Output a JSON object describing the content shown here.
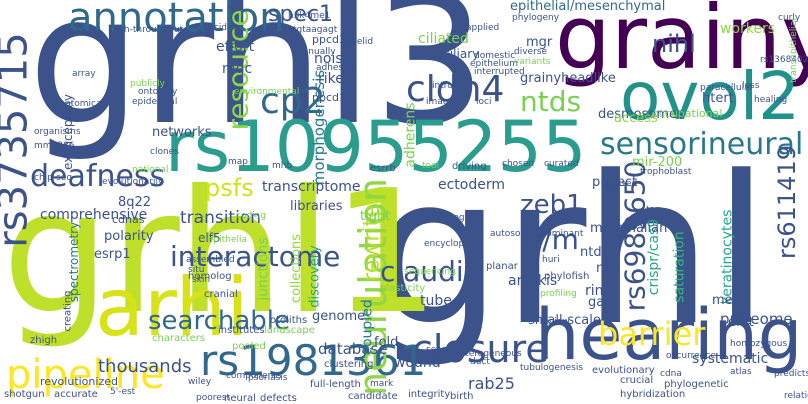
{
  "cloud": {
    "background": "#ffffff",
    "palette": [
      "#440154",
      "#3b528b",
      "#21918c",
      "#5ec962",
      "#fde725"
    ],
    "words": [
      {
        "text": "grhl",
        "color": "#3b528b"
      },
      {
        "text": "grhl3",
        "color": "#3b528b"
      },
      {
        "text": "grhl1",
        "color": "#bfe02a"
      },
      {
        "text": "grainy",
        "color": "#440154"
      },
      {
        "text": "hearing",
        "color": "#3b528b"
      },
      {
        "text": "rs10955255",
        "color": "#2a9d8f"
      },
      {
        "text": "ovol2",
        "color": "#21918c"
      },
      {
        "text": "arhi",
        "color": "#d8e219"
      },
      {
        "text": "annotation",
        "color": "#31688e"
      },
      {
        "text": "rs3735715",
        "color": "#3b528b"
      },
      {
        "text": "pipeline",
        "color": "#fde725"
      },
      {
        "text": "closure",
        "color": "#3b528b"
      },
      {
        "text": "rs1981361",
        "color": "#31688e"
      },
      {
        "text": "neurulation",
        "color": "#8fd744"
      },
      {
        "text": "sensorineural",
        "color": "#2a788e"
      },
      {
        "text": "interactome",
        "color": "#3b528b"
      },
      {
        "text": "claudin",
        "color": "#3b528b"
      },
      {
        "text": "searchable",
        "color": "#31688e"
      },
      {
        "text": "cldn4",
        "color": "#3b528b"
      },
      {
        "text": "cp2",
        "color": "#31688e"
      },
      {
        "text": "resource",
        "color": "#8fd744"
      },
      {
        "text": "deafness",
        "color": "#3b528b"
      },
      {
        "text": "spec1",
        "color": "#3b528b"
      },
      {
        "text": "ntds",
        "color": "#7ad151"
      },
      {
        "text": "e/m",
        "color": "#3b528b"
      },
      {
        "text": "barrier",
        "color": "#fde725"
      },
      {
        "text": "rewrite",
        "color": "#b5de2b"
      },
      {
        "text": "rs6989650",
        "color": "#3b528b"
      },
      {
        "text": "rs611419",
        "color": "#3b528b"
      },
      {
        "text": "zeb1",
        "color": "#3b528b"
      },
      {
        "text": "nihl",
        "color": "#3b528b"
      },
      {
        "text": "psfs",
        "color": "#d2e21b"
      },
      {
        "text": "morphogenesis",
        "color": "#2a788e"
      },
      {
        "text": "epithelial/mesenchymal",
        "color": "#31688e"
      },
      {
        "text": "crispr/cas9",
        "color": "#22a884"
      },
      {
        "text": "keratinocytes",
        "color": "#22a884"
      },
      {
        "text": "saturation",
        "color": "#35b779"
      },
      {
        "text": "grainyheadlike",
        "color": "#3b528b"
      },
      {
        "text": "transcriptome",
        "color": "#3b528b"
      },
      {
        "text": "thousands",
        "color": "#3b528b"
      },
      {
        "text": "mammalian",
        "color": "#3b528b"
      },
      {
        "text": "junctions",
        "color": "#7ad151"
      },
      {
        "text": "collections",
        "color": "#8fd744"
      },
      {
        "text": "discovery",
        "color": "#22a884"
      },
      {
        "text": "transition",
        "color": "#3b528b"
      },
      {
        "text": "comprehensive",
        "color": "#3b528b"
      },
      {
        "text": "spectrometry",
        "color": "#2a788e"
      },
      {
        "text": "rab25",
        "color": "#3b528b"
      },
      {
        "text": "systematic",
        "color": "#3b528b"
      },
      {
        "text": "database",
        "color": "#3b528b"
      },
      {
        "text": "proteome",
        "color": "#3b528b"
      },
      {
        "text": "anoikis",
        "color": "#3b528b"
      },
      {
        "text": "genome",
        "color": "#3b528b"
      },
      {
        "text": "wound",
        "color": "#3b528b"
      },
      {
        "text": "coupled",
        "color": "#2a788e"
      },
      {
        "text": "fold",
        "color": "#3b528b"
      },
      {
        "text": "tube",
        "color": "#3b528b"
      },
      {
        "text": "desmosomes",
        "color": "#3b528b"
      },
      {
        "text": "riken",
        "color": "#3b528b"
      },
      {
        "text": "noise",
        "color": "#3b528b"
      },
      {
        "text": "ciliated",
        "color": "#7ad151"
      },
      {
        "text": "access",
        "color": "#8fd744"
      },
      {
        "text": "occupational",
        "color": "#7ad151"
      },
      {
        "text": "workers",
        "color": "#8fd744"
      },
      {
        "text": "htert",
        "color": "#3b528b"
      },
      {
        "text": "mgr",
        "color": "#3b528b"
      },
      {
        "text": "mgc",
        "color": "#3b528b"
      },
      {
        "text": "effort",
        "color": "#3b528b"
      },
      {
        "text": "networks",
        "color": "#3b528b"
      },
      {
        "text": "ppcd1",
        "color": "#3b528b"
      },
      {
        "text": "ppcd3",
        "color": "#3b528b"
      },
      {
        "text": "mucociliary",
        "color": "#3b528b"
      },
      {
        "text": "adherens",
        "color": "#7ad151"
      },
      {
        "text": "exencephaly",
        "color": "#3b528b"
      },
      {
        "text": "8q22",
        "color": "#3b528b"
      },
      {
        "text": "esrp1",
        "color": "#3b528b"
      },
      {
        "text": "polarity",
        "color": "#3b528b"
      },
      {
        "text": "cdnas",
        "color": "#3b528b"
      },
      {
        "text": "elf5",
        "color": "#3b528b"
      },
      {
        "text": "libraries",
        "color": "#3b528b"
      },
      {
        "text": "tight",
        "color": "#7ad151"
      },
      {
        "text": "ectoderm",
        "color": "#3b528b"
      },
      {
        "text": "project",
        "color": "#3b528b"
      },
      {
        "text": "mir-200",
        "color": "#7ad151"
      },
      {
        "text": "ntd",
        "color": "#3b528b"
      },
      {
        "text": "nhk",
        "color": "#3b528b"
      },
      {
        "text": "rime",
        "color": "#3b528b"
      },
      {
        "text": "gap",
        "color": "#3b528b"
      },
      {
        "text": "met",
        "color": "#3b528b"
      },
      {
        "text": "emt",
        "color": "#3b528b"
      },
      {
        "text": "small-scale",
        "color": "#3b528b"
      },
      {
        "text": "review",
        "color": "#3b528b"
      },
      {
        "text": "revolutionized",
        "color": "#3b528b"
      },
      {
        "text": "shotgun",
        "color": "#3b528b"
      },
      {
        "text": "accurate",
        "color": "#3b528b"
      },
      {
        "text": "neural",
        "color": "#3b528b"
      },
      {
        "text": "defects",
        "color": "#3b528b"
      },
      {
        "text": "candidate",
        "color": "#3b528b"
      },
      {
        "text": "integrity",
        "color": "#3b528b"
      },
      {
        "text": "birth",
        "color": "#3b528b"
      },
      {
        "text": "hybridization",
        "color": "#3b528b"
      },
      {
        "text": "evolutionary",
        "color": "#3b528b"
      },
      {
        "text": "phylogenetic",
        "color": "#3b528b"
      },
      {
        "text": "crucial",
        "color": "#3b528b"
      },
      {
        "text": "atlas",
        "color": "#3b528b"
      },
      {
        "text": "homozygous",
        "color": "#3b528b"
      },
      {
        "text": "full-length",
        "color": "#3b528b"
      },
      {
        "text": "clustering",
        "color": "#3b528b"
      },
      {
        "text": "pooled",
        "color": "#7ad151"
      },
      {
        "text": "landscape",
        "color": "#7ad151"
      },
      {
        "text": "components",
        "color": "#3b528b"
      },
      {
        "text": "institutes",
        "color": "#3b528b"
      },
      {
        "text": "otoliths",
        "color": "#3b528b"
      },
      {
        "text": "characters",
        "color": "#7ad151"
      },
      {
        "text": "zhigh",
        "color": "#3b528b"
      },
      {
        "text": "creating",
        "color": "#3b528b"
      },
      {
        "text": "cranial",
        "color": "#3b528b"
      },
      {
        "text": "homolog",
        "color": "#3b528b"
      },
      {
        "text": "situ",
        "color": "#3b528b"
      },
      {
        "text": "skin",
        "color": "#3b528b"
      },
      {
        "text": "assembled",
        "color": "#3b528b"
      },
      {
        "text": "epithelia",
        "color": "#7ad151"
      },
      {
        "text": "plasticity",
        "color": "#7ad151"
      },
      {
        "text": "planar",
        "color": "#3b528b"
      },
      {
        "text": "huri",
        "color": "#3b528b"
      },
      {
        "text": "phylofish",
        "color": "#3b528b"
      },
      {
        "text": "profiling",
        "color": "#7ad151"
      },
      {
        "text": "sequencing",
        "color": "#7ad151"
      },
      {
        "text": "based",
        "color": "#3b528b"
      },
      {
        "text": "trophoblast",
        "color": "#3b528b"
      },
      {
        "text": "curated",
        "color": "#3b528b"
      },
      {
        "text": "chosen",
        "color": "#3b528b"
      },
      {
        "text": "driving",
        "color": "#3b528b"
      },
      {
        "text": "esrrb",
        "color": "#3b528b"
      },
      {
        "text": "mhb",
        "color": "#3b528b"
      },
      {
        "text": "map",
        "color": "#3b528b"
      },
      {
        "text": "tool",
        "color": "#7ad151"
      },
      {
        "text": "national",
        "color": "#7ad151"
      },
      {
        "text": "evolutionarily",
        "color": "#3b528b"
      },
      {
        "text": "chip-seq",
        "color": "#3b528b"
      },
      {
        "text": "mm1286",
        "color": "#3b528b"
      },
      {
        "text": "organisms",
        "color": "#3b528b"
      },
      {
        "text": "anatomical",
        "color": "#3b528b"
      },
      {
        "text": "array",
        "color": "#3b528b"
      },
      {
        "text": "conserved",
        "color": "#3b528b"
      },
      {
        "text": "high-throughput",
        "color": "#3b528b"
      },
      {
        "text": "elucidate",
        "color": "#3b528b"
      },
      {
        "text": "sall4",
        "color": "#3b528b"
      },
      {
        "text": "h3k4me1",
        "color": "#3b528b"
      },
      {
        "text": "manually",
        "color": "#3b528b"
      },
      {
        "text": "eyelid",
        "color": "#3b528b"
      },
      {
        "text": "adhesion",
        "color": "#3b528b"
      },
      {
        "text": "intron",
        "color": "#3b528b"
      },
      {
        "text": "images",
        "color": "#3b528b"
      },
      {
        "text": "loci",
        "color": "#3b528b"
      },
      {
        "text": "epithelium",
        "color": "#3b528b"
      },
      {
        "text": "domestic",
        "color": "#3b528b"
      },
      {
        "text": "interrupted",
        "color": "#3b528b"
      },
      {
        "text": "applied",
        "color": "#3b528b"
      },
      {
        "text": "phylogeny",
        "color": "#3b528b"
      },
      {
        "text": "diverse",
        "color": "#3b528b"
      },
      {
        "text": "variants",
        "color": "#7ad151"
      },
      {
        "text": "curly",
        "color": "#3b528b"
      },
      {
        "text": "rs1368402",
        "color": "#3b528b"
      },
      {
        "text": "paracellular",
        "color": "#3b528b"
      },
      {
        "text": "loss",
        "color": "#3b528b"
      },
      {
        "text": "healing",
        "color": "#3b528b"
      },
      {
        "text": "transepithelial",
        "color": "#7ad151"
      },
      {
        "text": "ontology",
        "color": "#3b528b"
      },
      {
        "text": "epidermal",
        "color": "#3b528b"
      },
      {
        "text": "publicly",
        "color": "#7ad151"
      },
      {
        "text": "clones",
        "color": "#3b528b"
      },
      {
        "text": "environmental",
        "color": "#7ad151"
      },
      {
        "text": "ctgtaagagt",
        "color": "#3b528b"
      },
      {
        "text": "coding",
        "color": "#7ad151"
      },
      {
        "text": "technology",
        "color": "#3b528b"
      },
      {
        "text": "encyclopedia",
        "color": "#3b528b"
      },
      {
        "text": "autosomal-dominant",
        "color": "#3b528b"
      },
      {
        "text": "tubulogenesis",
        "color": "#3b528b"
      },
      {
        "text": "heterogeneous",
        "color": "#3b528b"
      },
      {
        "text": "duct",
        "color": "#3b528b"
      },
      {
        "text": "search",
        "color": "#3b528b"
      },
      {
        "text": "tag",
        "color": "#3b528b"
      },
      {
        "text": "mark",
        "color": "#3b528b"
      },
      {
        "text": "cdna",
        "color": "#3b528b"
      },
      {
        "text": "predicts",
        "color": "#3b528b"
      },
      {
        "text": "relationships",
        "color": "#3b528b"
      },
      {
        "text": "occurrence",
        "color": "#3b528b"
      },
      {
        "text": "5'-est",
        "color": "#3b528b"
      },
      {
        "text": "wiley",
        "color": "#3b528b"
      },
      {
        "text": "poorest",
        "color": "#3b528b"
      },
      {
        "text": "psoriasis",
        "color": "#3b528b"
      },
      {
        "text": "highlight",
        "color": "#3b528b"
      },
      {
        "text": "non-homologous",
        "color": "#7ad151"
      }
    ]
  }
}
